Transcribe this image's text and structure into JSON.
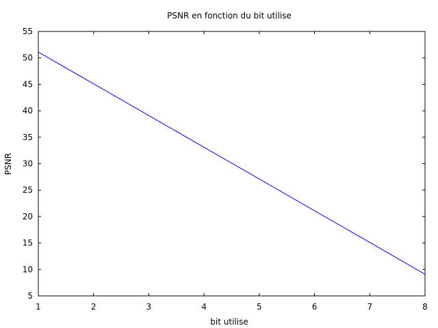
{
  "chart_data": {
    "type": "line",
    "title": "PSNR en fonction du bit utilise",
    "xlabel": "bit utilise",
    "ylabel": "PSNR",
    "xlim": [
      1,
      8
    ],
    "ylim": [
      5,
      55
    ],
    "xticks": [
      "1",
      "2",
      "3",
      "4",
      "5",
      "6",
      "7",
      "8"
    ],
    "yticks": [
      "5",
      "10",
      "15",
      "20",
      "25",
      "30",
      "35",
      "40",
      "45",
      "50",
      "55"
    ],
    "grid": false,
    "series": [
      {
        "color": "#0000ff",
        "x": [
          1,
          2,
          3,
          4,
          5,
          6,
          7,
          8
        ],
        "y": [
          51.1,
          45.1,
          39.1,
          33.1,
          27.1,
          21.1,
          15.1,
          9.1
        ]
      }
    ]
  }
}
